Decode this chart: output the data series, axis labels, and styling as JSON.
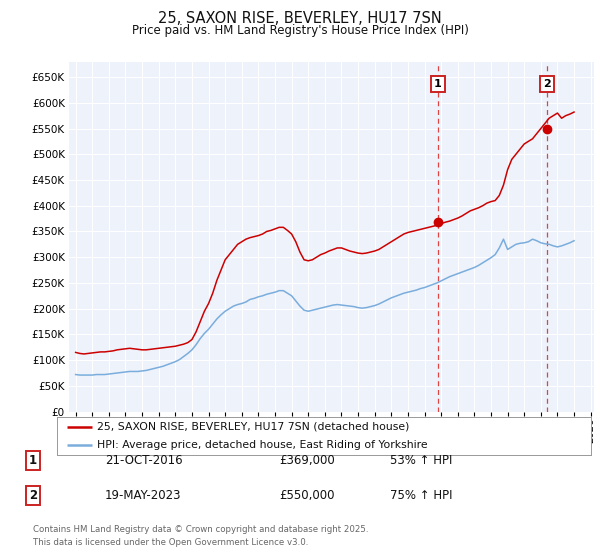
{
  "title": "25, SAXON RISE, BEVERLEY, HU17 7SN",
  "subtitle": "Price paid vs. HM Land Registry's House Price Index (HPI)",
  "background_color": "#ffffff",
  "plot_bg_color": "#eef2fb",
  "grid_color": "#ffffff",
  "ylim": [
    0,
    680000
  ],
  "yticks": [
    0,
    50000,
    100000,
    150000,
    200000,
    250000,
    300000,
    350000,
    400000,
    450000,
    500000,
    550000,
    600000,
    650000
  ],
  "xlim_start": 1994.6,
  "xlim_end": 2026.2,
  "red_line_color": "#cc0000",
  "blue_line_color": "#7aaddc",
  "vline_color": "#dd4444",
  "marker1_x": 2016.81,
  "marker1_y": 369000,
  "marker2_x": 2023.38,
  "marker2_y": 550000,
  "vline1_x": 2016.81,
  "vline2_x": 2023.38,
  "legend_line1": "25, SAXON RISE, BEVERLEY, HU17 7SN (detached house)",
  "legend_line2": "HPI: Average price, detached house, East Riding of Yorkshire",
  "table_row1": [
    "1",
    "21-OCT-2016",
    "£369,000",
    "53% ↑ HPI"
  ],
  "table_row2": [
    "2",
    "19-MAY-2023",
    "£550,000",
    "75% ↑ HPI"
  ],
  "footnote": "Contains HM Land Registry data © Crown copyright and database right 2025.\nThis data is licensed under the Open Government Licence v3.0.",
  "red_hpi_x": [
    1995.0,
    1995.25,
    1995.5,
    1995.75,
    1996.0,
    1996.25,
    1996.5,
    1996.75,
    1997.0,
    1997.25,
    1997.5,
    1997.75,
    1998.0,
    1998.25,
    1998.5,
    1998.75,
    1999.0,
    1999.25,
    1999.5,
    1999.75,
    2000.0,
    2000.25,
    2000.5,
    2000.75,
    2001.0,
    2001.25,
    2001.5,
    2001.75,
    2002.0,
    2002.25,
    2002.5,
    2002.75,
    2003.0,
    2003.25,
    2003.5,
    2003.75,
    2004.0,
    2004.25,
    2004.5,
    2004.75,
    2005.0,
    2005.25,
    2005.5,
    2005.75,
    2006.0,
    2006.25,
    2006.5,
    2006.75,
    2007.0,
    2007.25,
    2007.5,
    2007.75,
    2008.0,
    2008.25,
    2008.5,
    2008.75,
    2009.0,
    2009.25,
    2009.5,
    2009.75,
    2010.0,
    2010.25,
    2010.5,
    2010.75,
    2011.0,
    2011.25,
    2011.5,
    2011.75,
    2012.0,
    2012.25,
    2012.5,
    2012.75,
    2013.0,
    2013.25,
    2013.5,
    2013.75,
    2014.0,
    2014.25,
    2014.5,
    2014.75,
    2015.0,
    2015.25,
    2015.5,
    2015.75,
    2016.0,
    2016.25,
    2016.5,
    2016.75,
    2017.0,
    2017.25,
    2017.5,
    2017.75,
    2018.0,
    2018.25,
    2018.5,
    2018.75,
    2019.0,
    2019.25,
    2019.5,
    2019.75,
    2020.0,
    2020.25,
    2020.5,
    2020.75,
    2021.0,
    2021.25,
    2021.5,
    2021.75,
    2022.0,
    2022.25,
    2022.5,
    2022.75,
    2023.0,
    2023.25,
    2023.5,
    2023.75,
    2024.0,
    2024.25,
    2024.5,
    2024.75,
    2025.0
  ],
  "red_hpi_y": [
    115000,
    113000,
    112000,
    113000,
    114000,
    115000,
    116000,
    116000,
    117000,
    118000,
    120000,
    121000,
    122000,
    123000,
    122000,
    121000,
    120000,
    120000,
    121000,
    122000,
    123000,
    124000,
    125000,
    126000,
    127000,
    129000,
    131000,
    134000,
    140000,
    155000,
    175000,
    195000,
    210000,
    230000,
    255000,
    275000,
    295000,
    305000,
    315000,
    325000,
    330000,
    335000,
    338000,
    340000,
    342000,
    345000,
    350000,
    352000,
    355000,
    358000,
    358000,
    352000,
    345000,
    330000,
    310000,
    295000,
    293000,
    295000,
    300000,
    305000,
    308000,
    312000,
    315000,
    318000,
    318000,
    315000,
    312000,
    310000,
    308000,
    307000,
    308000,
    310000,
    312000,
    315000,
    320000,
    325000,
    330000,
    335000,
    340000,
    345000,
    348000,
    350000,
    352000,
    354000,
    356000,
    358000,
    360000,
    362000,
    365000,
    368000,
    370000,
    373000,
    376000,
    380000,
    385000,
    390000,
    393000,
    396000,
    400000,
    405000,
    408000,
    410000,
    420000,
    440000,
    470000,
    490000,
    500000,
    510000,
    520000,
    525000,
    530000,
    540000,
    550000,
    560000,
    570000,
    575000,
    580000,
    570000,
    575000,
    578000,
    582000
  ],
  "blue_hpi_x": [
    1995.0,
    1995.25,
    1995.5,
    1995.75,
    1996.0,
    1996.25,
    1996.5,
    1996.75,
    1997.0,
    1997.25,
    1997.5,
    1997.75,
    1998.0,
    1998.25,
    1998.5,
    1998.75,
    1999.0,
    1999.25,
    1999.5,
    1999.75,
    2000.0,
    2000.25,
    2000.5,
    2000.75,
    2001.0,
    2001.25,
    2001.5,
    2001.75,
    2002.0,
    2002.25,
    2002.5,
    2002.75,
    2003.0,
    2003.25,
    2003.5,
    2003.75,
    2004.0,
    2004.25,
    2004.5,
    2004.75,
    2005.0,
    2005.25,
    2005.5,
    2005.75,
    2006.0,
    2006.25,
    2006.5,
    2006.75,
    2007.0,
    2007.25,
    2007.5,
    2007.75,
    2008.0,
    2008.25,
    2008.5,
    2008.75,
    2009.0,
    2009.25,
    2009.5,
    2009.75,
    2010.0,
    2010.25,
    2010.5,
    2010.75,
    2011.0,
    2011.25,
    2011.5,
    2011.75,
    2012.0,
    2012.25,
    2012.5,
    2012.75,
    2013.0,
    2013.25,
    2013.5,
    2013.75,
    2014.0,
    2014.25,
    2014.5,
    2014.75,
    2015.0,
    2015.25,
    2015.5,
    2015.75,
    2016.0,
    2016.25,
    2016.5,
    2016.75,
    2017.0,
    2017.25,
    2017.5,
    2017.75,
    2018.0,
    2018.25,
    2018.5,
    2018.75,
    2019.0,
    2019.25,
    2019.5,
    2019.75,
    2020.0,
    2020.25,
    2020.5,
    2020.75,
    2021.0,
    2021.25,
    2021.5,
    2021.75,
    2022.0,
    2022.25,
    2022.5,
    2022.75,
    2023.0,
    2023.25,
    2023.5,
    2023.75,
    2024.0,
    2024.25,
    2024.5,
    2024.75,
    2025.0
  ],
  "blue_hpi_y": [
    72000,
    71000,
    71000,
    71000,
    71000,
    72000,
    72000,
    72000,
    73000,
    74000,
    75000,
    76000,
    77000,
    78000,
    78000,
    78000,
    79000,
    80000,
    82000,
    84000,
    86000,
    88000,
    91000,
    94000,
    97000,
    101000,
    107000,
    113000,
    120000,
    130000,
    142000,
    152000,
    160000,
    170000,
    180000,
    188000,
    195000,
    200000,
    205000,
    208000,
    210000,
    213000,
    218000,
    220000,
    223000,
    225000,
    228000,
    230000,
    232000,
    235000,
    235000,
    230000,
    225000,
    215000,
    205000,
    197000,
    195000,
    197000,
    199000,
    201000,
    203000,
    205000,
    207000,
    208000,
    207000,
    206000,
    205000,
    204000,
    202000,
    201000,
    202000,
    204000,
    206000,
    209000,
    213000,
    217000,
    221000,
    224000,
    227000,
    230000,
    232000,
    234000,
    236000,
    239000,
    241000,
    244000,
    247000,
    250000,
    254000,
    258000,
    262000,
    265000,
    268000,
    271000,
    274000,
    277000,
    280000,
    284000,
    289000,
    294000,
    299000,
    305000,
    318000,
    335000,
    315000,
    320000,
    325000,
    327000,
    328000,
    330000,
    335000,
    332000,
    328000,
    326000,
    325000,
    322000,
    320000,
    322000,
    325000,
    328000,
    332000
  ]
}
